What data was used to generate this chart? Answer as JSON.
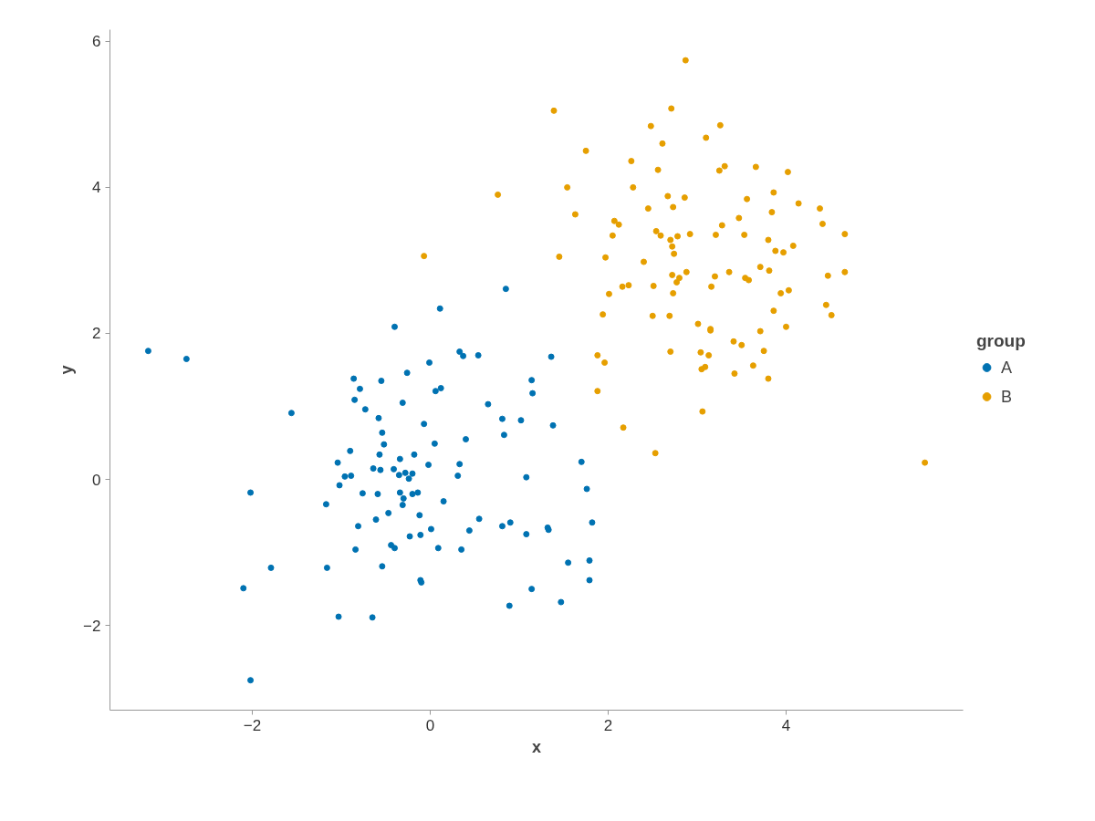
{
  "chart_data": {
    "type": "scatter",
    "xlabel": "x",
    "ylabel": "y",
    "legend_title": "group",
    "legend": "right",
    "grid": false,
    "marker": "circle",
    "xlim": [
      -3.6,
      5.99
    ],
    "ylim": [
      -3.16,
      6.16
    ],
    "xticks": [
      {
        "value": -2,
        "label": "−2"
      },
      0,
      2,
      4
    ],
    "yticks": [
      {
        "value": -2,
        "label": "−2"
      },
      0,
      2,
      4,
      6
    ],
    "series": [
      {
        "name": "A",
        "color": "#0072b2",
        "x": [
          -3.17,
          -2.74,
          -1.56,
          -2.02,
          -2.1,
          -1.79,
          -2.02,
          -1.17,
          -1.16,
          -1.03,
          -0.65,
          -1.04,
          -1.02,
          -0.96,
          -0.9,
          -0.89,
          -0.85,
          -0.86,
          -0.79,
          -0.73,
          -0.76,
          -0.81,
          -0.84,
          -0.64,
          -0.59,
          -0.58,
          -0.57,
          -0.56,
          -0.55,
          -0.54,
          -0.52,
          -0.61,
          -0.54,
          -0.47,
          -0.44,
          -0.4,
          -0.41,
          -0.4,
          -0.34,
          -0.35,
          -0.34,
          -0.31,
          -0.3,
          -0.31,
          -0.26,
          -0.28,
          -0.24,
          -0.23,
          -0.2,
          -0.2,
          -0.18,
          -0.14,
          -0.12,
          -0.11,
          -0.11,
          -0.1,
          -0.07,
          -0.02,
          -0.01,
          0.01,
          0.05,
          0.06,
          0.09,
          0.12,
          0.11,
          0.15,
          0.31,
          0.33,
          0.35,
          0.33,
          0.37,
          0.4,
          0.44,
          0.54,
          0.55,
          0.65,
          0.81,
          0.81,
          0.83,
          0.85,
          0.89,
          0.9,
          1.02,
          1.08,
          1.08,
          1.14,
          1.15,
          1.14,
          1.32,
          1.33,
          1.36,
          1.38,
          1.47,
          1.55,
          1.7,
          1.76,
          1.79,
          1.79,
          1.82
        ],
        "values": [
          1.76,
          1.65,
          0.91,
          -0.18,
          -1.49,
          -1.21,
          -2.75,
          -0.34,
          -1.21,
          -1.88,
          -1.89,
          0.23,
          -0.08,
          0.04,
          0.39,
          0.05,
          1.09,
          1.38,
          1.24,
          0.96,
          -0.19,
          -0.64,
          -0.96,
          0.15,
          -0.2,
          0.84,
          0.34,
          0.13,
          1.35,
          0.64,
          0.48,
          -0.55,
          -1.19,
          -0.46,
          -0.9,
          -0.94,
          0.14,
          2.09,
          0.28,
          0.06,
          -0.18,
          -0.35,
          -0.26,
          1.05,
          1.46,
          0.09,
          0.01,
          -0.78,
          0.08,
          -0.2,
          0.34,
          -0.18,
          -0.49,
          -0.76,
          -1.38,
          -1.41,
          0.76,
          0.2,
          1.6,
          -0.68,
          0.49,
          1.21,
          -0.94,
          1.25,
          2.34,
          -0.3,
          0.05,
          0.21,
          -0.96,
          1.75,
          1.69,
          0.55,
          -0.7,
          1.7,
          -0.54,
          1.03,
          0.83,
          -0.64,
          0.61,
          2.61,
          -1.73,
          -0.59,
          0.81,
          0.03,
          -0.75,
          1.36,
          1.18,
          -1.5,
          -0.66,
          -0.69,
          1.68,
          0.74,
          -1.68,
          -1.14,
          0.24,
          -0.13,
          -1.11,
          -1.38,
          -0.59
        ]
      },
      {
        "name": "B",
        "color": "#e69f00",
        "x": [
          -0.07,
          0.76,
          1.39,
          1.45,
          1.54,
          1.63,
          1.75,
          1.88,
          1.88,
          1.94,
          1.96,
          1.97,
          2.01,
          2.05,
          2.07,
          2.12,
          2.17,
          2.16,
          2.23,
          2.26,
          2.28,
          2.4,
          2.45,
          2.48,
          2.5,
          2.51,
          2.53,
          2.54,
          2.56,
          2.59,
          2.61,
          2.67,
          2.7,
          2.69,
          2.7,
          2.71,
          2.72,
          2.73,
          2.73,
          2.74,
          2.72,
          2.77,
          2.78,
          2.8,
          2.86,
          2.87,
          2.88,
          2.92,
          3.01,
          3.04,
          3.05,
          3.06,
          3.09,
          3.1,
          3.13,
          3.15,
          3.15,
          3.16,
          3.2,
          3.21,
          3.25,
          3.26,
          3.28,
          3.31,
          3.36,
          3.41,
          3.42,
          3.47,
          3.5,
          3.53,
          3.54,
          3.56,
          3.58,
          3.63,
          3.66,
          3.71,
          3.71,
          3.75,
          3.8,
          3.8,
          3.81,
          3.84,
          3.86,
          3.86,
          3.88,
          3.94,
          3.97,
          4.0,
          4.02,
          4.03,
          4.08,
          4.14,
          4.38,
          4.41,
          4.45,
          4.47,
          4.51,
          4.66,
          4.66,
          5.56
        ],
        "values": [
          3.06,
          3.9,
          5.05,
          3.05,
          4.0,
          3.63,
          4.5,
          1.7,
          1.21,
          2.26,
          1.6,
          3.04,
          2.54,
          3.34,
          3.54,
          3.49,
          0.71,
          2.64,
          2.66,
          4.36,
          4.0,
          2.98,
          3.71,
          4.84,
          2.24,
          2.65,
          0.36,
          3.4,
          4.24,
          3.34,
          4.6,
          3.88,
          3.28,
          2.24,
          1.75,
          5.08,
          3.19,
          3.73,
          2.55,
          3.09,
          2.8,
          2.7,
          3.33,
          2.76,
          3.86,
          5.74,
          2.84,
          3.36,
          2.13,
          1.74,
          1.51,
          0.93,
          1.54,
          4.68,
          1.7,
          2.04,
          2.06,
          2.64,
          2.78,
          3.35,
          4.23,
          4.85,
          3.48,
          4.29,
          2.84,
          1.89,
          1.45,
          3.58,
          1.84,
          3.35,
          2.76,
          3.84,
          2.73,
          1.56,
          4.28,
          2.91,
          2.03,
          1.76,
          1.38,
          3.28,
          2.86,
          3.66,
          3.93,
          2.31,
          3.13,
          2.55,
          3.11,
          2.09,
          4.21,
          2.59,
          3.2,
          3.78,
          3.71,
          3.5,
          2.39,
          2.79,
          2.25,
          3.36,
          2.84,
          0.23
        ]
      }
    ]
  }
}
